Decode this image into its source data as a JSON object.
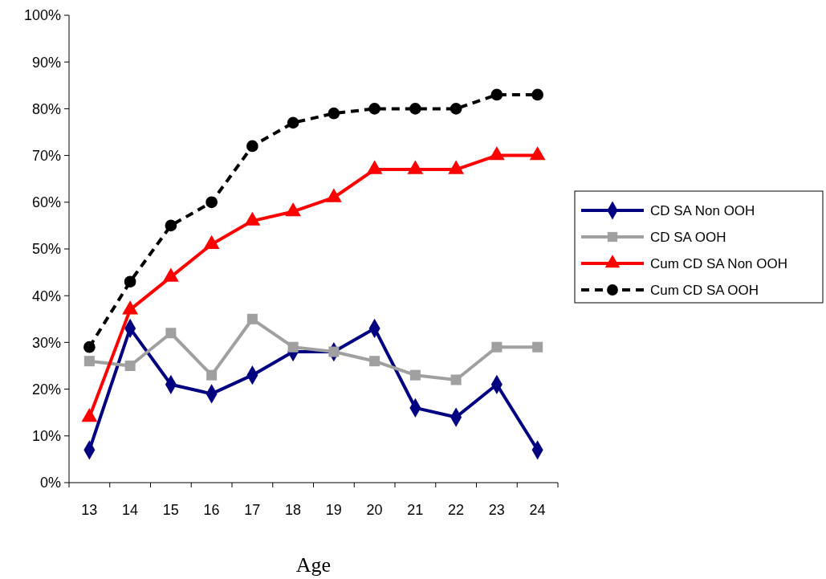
{
  "chart_data": {
    "type": "line",
    "xlabel": "Age",
    "categories": [
      "13",
      "14",
      "15",
      "16",
      "17",
      "18",
      "19",
      "20",
      "21",
      "22",
      "23",
      "24"
    ],
    "ylim": [
      0,
      100
    ],
    "yticks": [
      {
        "value": 0,
        "label": "0%"
      },
      {
        "value": 10,
        "label": "10%"
      },
      {
        "value": 20,
        "label": "20%"
      },
      {
        "value": 30,
        "label": "30%"
      },
      {
        "value": 40,
        "label": "40%"
      },
      {
        "value": 50,
        "label": "50%"
      },
      {
        "value": 60,
        "label": "60%"
      },
      {
        "value": 70,
        "label": "70%"
      },
      {
        "value": 80,
        "label": "80%"
      },
      {
        "value": 90,
        "label": "90%"
      },
      {
        "value": 100,
        "label": "100%"
      }
    ],
    "legend": "right",
    "grid": false,
    "series": [
      {
        "name": "CD SA Non OOH",
        "color": "#000080",
        "marker": "diamond",
        "line_style": "solid",
        "values": [
          7,
          33,
          21,
          19,
          23,
          28,
          28,
          33,
          16,
          14,
          21,
          7
        ]
      },
      {
        "name": "CD SA OOH",
        "color": "#a0a0a0",
        "marker": "square",
        "line_style": "solid",
        "values": [
          26,
          25,
          32,
          23,
          35,
          29,
          28,
          26,
          23,
          22,
          29,
          29
        ]
      },
      {
        "name": "Cum CD SA Non OOH",
        "color": "#ff0000",
        "marker": "triangle",
        "line_style": "solid",
        "values": [
          14,
          37,
          44,
          51,
          56,
          58,
          61,
          67,
          67,
          67,
          70,
          70
        ]
      },
      {
        "name": "Cum CD SA OOH",
        "color": "#000000",
        "marker": "circle",
        "line_style": "dashed",
        "values": [
          29,
          43,
          55,
          60,
          72,
          77,
          79,
          80,
          80,
          80,
          83,
          83
        ]
      }
    ]
  }
}
